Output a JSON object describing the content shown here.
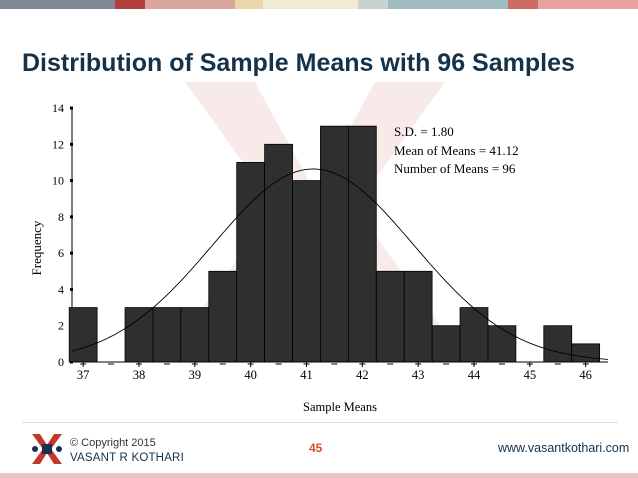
{
  "slide": {
    "title": "Distribution of Sample Means with 96 Samples",
    "page_number": "45",
    "copyright": "© Copyright 2015",
    "author": "VASANT R KOTHARI",
    "website": "www.vasantkothari.com"
  },
  "colors": {
    "title": "#14324a",
    "bar_fill": "#2f2f2f",
    "bar_stroke": "#000000",
    "curve": "#000000",
    "page_number": "#d4502e",
    "logo_red": "#c0392b",
    "logo_navy": "#1d2e50",
    "topbar": [
      "#7f8a96",
      "#b3403c",
      "#d9a59c",
      "#e9d7a8",
      "#f1ecd1",
      "#c6d3d2",
      "#9fbcc3",
      "#d06a64",
      "#e6a39d"
    ]
  },
  "chart_data": {
    "type": "bar",
    "subtype": "histogram with normal curve",
    "xlabel": "Sample Means",
    "ylabel": "Frequency",
    "ylim": [
      0,
      14
    ],
    "yticks": [
      "0",
      "2",
      "4",
      "6",
      "8",
      "10",
      "12",
      "14"
    ],
    "xlim": [
      36.8,
      46.4
    ],
    "xticks": [
      "37",
      "38",
      "39",
      "40",
      "41",
      "42",
      "43",
      "44",
      "45",
      "46"
    ],
    "bin_width": 0.5,
    "bins": [
      {
        "x": 37.0,
        "value": 3
      },
      {
        "x": 37.5,
        "value": 0
      },
      {
        "x": 38.0,
        "value": 3
      },
      {
        "x": 38.5,
        "value": 3
      },
      {
        "x": 39.0,
        "value": 3
      },
      {
        "x": 39.5,
        "value": 5
      },
      {
        "x": 40.0,
        "value": 11
      },
      {
        "x": 40.5,
        "value": 12
      },
      {
        "x": 41.0,
        "value": 10
      },
      {
        "x": 41.5,
        "value": 13
      },
      {
        "x": 42.0,
        "value": 13
      },
      {
        "x": 42.5,
        "value": 5
      },
      {
        "x": 43.0,
        "value": 5
      },
      {
        "x": 43.5,
        "value": 2
      },
      {
        "x": 44.0,
        "value": 3
      },
      {
        "x": 44.5,
        "value": 2
      },
      {
        "x": 45.0,
        "value": 0
      },
      {
        "x": 45.5,
        "value": 2
      },
      {
        "x": 46.0,
        "value": 1
      }
    ],
    "curve": {
      "type": "normal",
      "mean": 41.12,
      "sd": 1.8,
      "n": 96
    },
    "annotations": [
      "S.D. = 1.80",
      "Mean of Means = 41.12",
      "Number of Means = 96"
    ]
  }
}
